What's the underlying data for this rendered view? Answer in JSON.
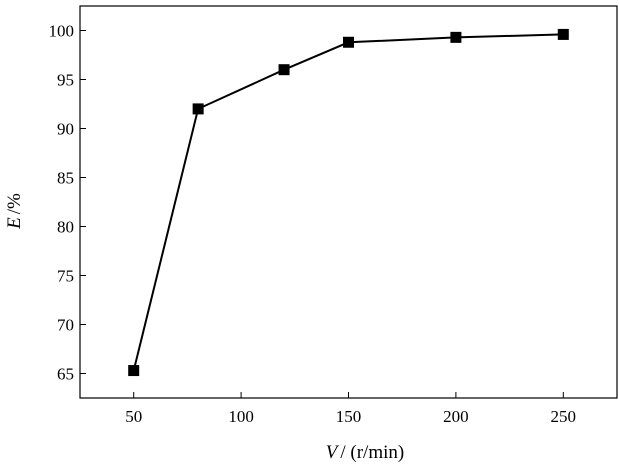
{
  "chart_data": {
    "type": "line",
    "title": "",
    "x_axis": {
      "label_var": "V",
      "label_unit": "/ (r/min)",
      "range": [
        25,
        275
      ],
      "ticks": [
        50,
        100,
        150,
        200,
        250
      ]
    },
    "y_axis": {
      "label_var": "E",
      "label_unit": "/%",
      "range": [
        62.5,
        102.5
      ],
      "ticks": [
        65,
        70,
        75,
        80,
        85,
        90,
        95,
        100
      ]
    },
    "grid": false,
    "legend": "none",
    "series": [
      {
        "x": [
          50,
          80,
          120,
          150,
          200,
          250
        ],
        "y": [
          65.3,
          92.0,
          96.0,
          98.8,
          99.3,
          99.6
        ],
        "marker": "square",
        "color": "#000000"
      }
    ]
  }
}
